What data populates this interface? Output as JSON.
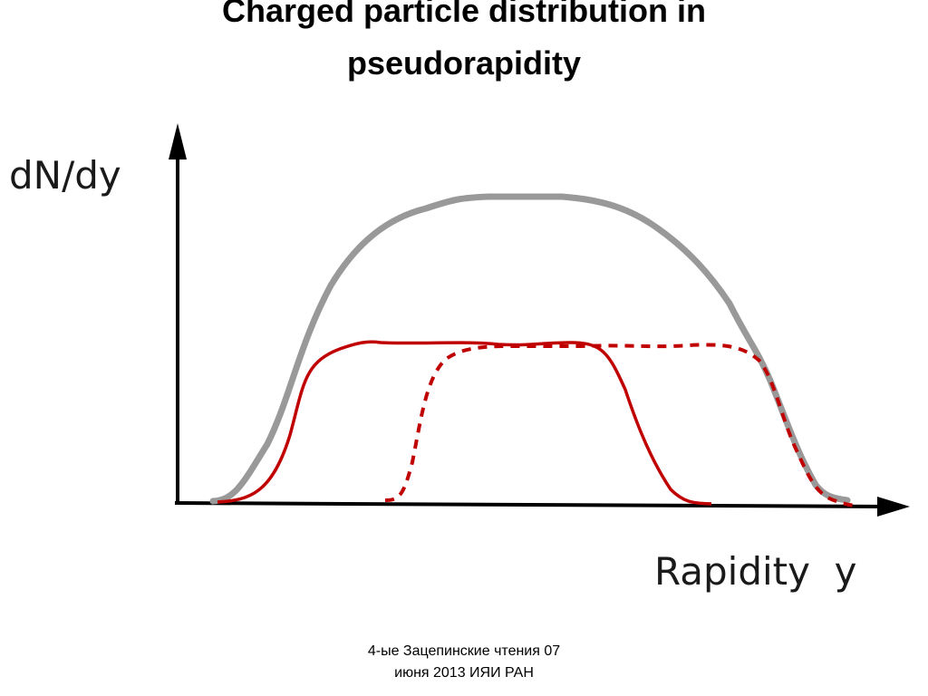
{
  "title": {
    "lines": [
      "Charged particle distribution in",
      "pseudorapidity"
    ]
  },
  "diagram": {
    "y_axis_label": "dN/dy",
    "x_axis_label": "Rapidity  y"
  },
  "footer": {
    "lines": [
      "4-ые Зацепинские чтения 07",
      "июня 2013 ИЯИ РАН"
    ]
  }
}
